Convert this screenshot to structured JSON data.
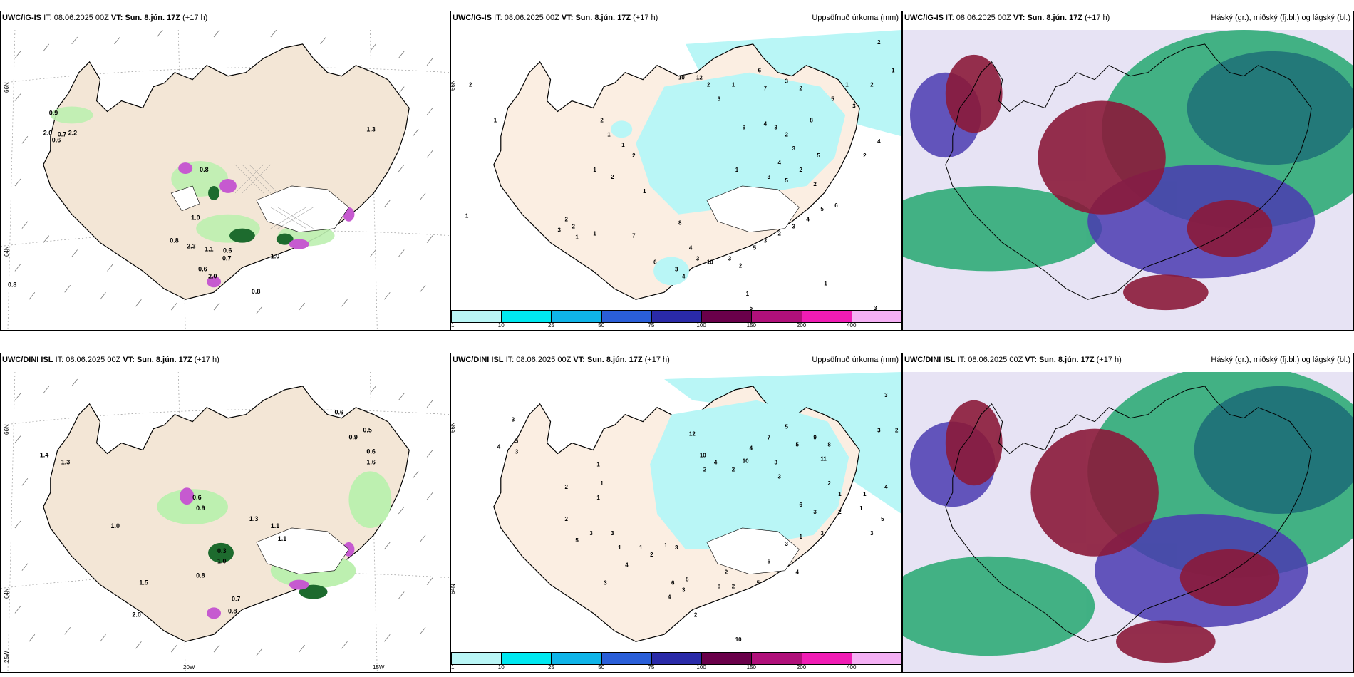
{
  "panels": {
    "top_left": {
      "model": "UWC/IG-IS",
      "it_label": "IT:",
      "it_value": "08.06.2025 00Z",
      "vt_label": "VT:",
      "vt_value": "Sun. 8.jún. 17Z",
      "lead": "(+17 h)",
      "right_title": ""
    },
    "top_mid": {
      "model": "UWC/IG-IS",
      "it_label": "IT:",
      "it_value": "08.06.2025 00Z",
      "vt_label": "VT:",
      "vt_value": "Sun. 8.jún. 17Z",
      "lead": "(+17 h)",
      "right_title": "Uppsöfnuð úrkoma (mm)"
    },
    "top_right": {
      "model": "UWC/IG-IS",
      "it_label": "IT:",
      "it_value": "08.06.2025 00Z",
      "vt_label": "VT:",
      "vt_value": "Sun. 8.jún. 17Z",
      "lead": "(+17 h)",
      "right_title": "Háský (gr.), miðský (fj.bl.) og lágský (bl.)"
    },
    "bot_left": {
      "model": "UWC/DINI ISL",
      "it_label": "IT:",
      "it_value": "08.06.2025 00Z",
      "vt_label": "VT:",
      "vt_value": "Sun. 8.jún. 17Z",
      "lead": "(+17 h)",
      "right_title": ""
    },
    "bot_mid": {
      "model": "UWC/DINI ISL",
      "it_label": "IT:",
      "it_value": "08.06.2025 00Z",
      "vt_label": "VT:",
      "vt_value": "Sun. 8.jún. 17Z",
      "lead": "(+17 h)",
      "right_title": "Uppsöfnuð úrkoma (mm)"
    },
    "bot_right": {
      "model": "UWC/DINI ISL",
      "it_label": "IT:",
      "it_value": "08.06.2025 00Z",
      "vt_label": "VT:",
      "vt_value": "Sun. 8.jún. 17Z",
      "lead": "(+17 h)",
      "right_title": "Háský (gr.), miðský (fj.bl.) og lágský (bl.)"
    }
  },
  "axes": {
    "lat_66": "66N",
    "lat_64": "64N",
    "lon_25": "25W",
    "lon_20": "20W",
    "lon_15": "15W"
  },
  "colorbar": {
    "ticks": [
      "1",
      "10",
      "25",
      "50",
      "75",
      "100",
      "150",
      "200",
      "400"
    ],
    "colors": [
      "#b9f6f6",
      "#00e8f0",
      "#0fb4e8",
      "#2a5ed8",
      "#2a2aa8",
      "#6a004a",
      "#b0107a",
      "#f01cb4",
      "#f4b0f4"
    ]
  },
  "colors": {
    "land": "#f3e6d6",
    "precip_land": "#fbeee2",
    "light_cyan": "#b9f6f6",
    "glacier": "#ffffff",
    "green": "#bdf0b0",
    "dark_green": "#1d6b2e",
    "magenta": "#c65ad0",
    "high_cloud": "#24a870",
    "mid_cloud": "#8b1a3a",
    "low_cloud": "#4a3bb0"
  },
  "precip_labels_top": [
    "2",
    "1",
    "2",
    "1",
    "1",
    "2",
    "1",
    "2",
    "1",
    "7",
    "2",
    "1",
    "1",
    "8",
    "4",
    "3",
    "6",
    "3",
    "4",
    "10",
    "3",
    "2",
    "5",
    "3",
    "1",
    "2",
    "3",
    "4",
    "5",
    "6",
    "9",
    "8",
    "4",
    "3",
    "2",
    "3",
    "5",
    "2",
    "2",
    "4",
    "5",
    "3",
    "1",
    "12",
    "10",
    "1",
    "3",
    "6",
    "7",
    "3",
    "2",
    "2",
    "1",
    "2",
    "3",
    "1",
    "5",
    "2",
    "4",
    "1",
    "3",
    "2",
    "1",
    "5",
    "3",
    "2"
  ],
  "precip_labels_bot": [
    "3",
    "5",
    "4",
    "3",
    "2",
    "1",
    "1",
    "2",
    "5",
    "3",
    "3",
    "1",
    "4",
    "2",
    "1",
    "1",
    "3",
    "3",
    "3",
    "6",
    "8",
    "10",
    "3",
    "2",
    "3",
    "4",
    "7",
    "5",
    "5",
    "9",
    "8",
    "11",
    "2",
    "1",
    "3",
    "2",
    "6",
    "3",
    "1",
    "1",
    "4",
    "5",
    "3",
    "3",
    "2",
    "3",
    "1",
    "3",
    "12",
    "10",
    "4",
    "2",
    "4",
    "5",
    "2",
    "8",
    "2",
    "5",
    "2",
    "4",
    "1",
    "10"
  ],
  "wind_labels_top": [
    "0.9",
    "2.0",
    "0.7",
    "2.2",
    "0.6",
    "1.3",
    "0.8",
    "1.0",
    "0.8",
    "2.3",
    "1.1",
    "0.6",
    "0.7",
    "2.0",
    "0.8",
    "1.0",
    "0.6",
    "0.8"
  ],
  "wind_labels_bot": [
    "0.6",
    "0.9",
    "0.6",
    "0.5",
    "1.4",
    "1.6",
    "1.3",
    "1.0",
    "0.6",
    "0.9",
    "1.3",
    "1.1",
    "0.3",
    "0.8",
    "1.0",
    "1.5",
    "2.0",
    "1.1",
    "0.7",
    "0.8"
  ]
}
